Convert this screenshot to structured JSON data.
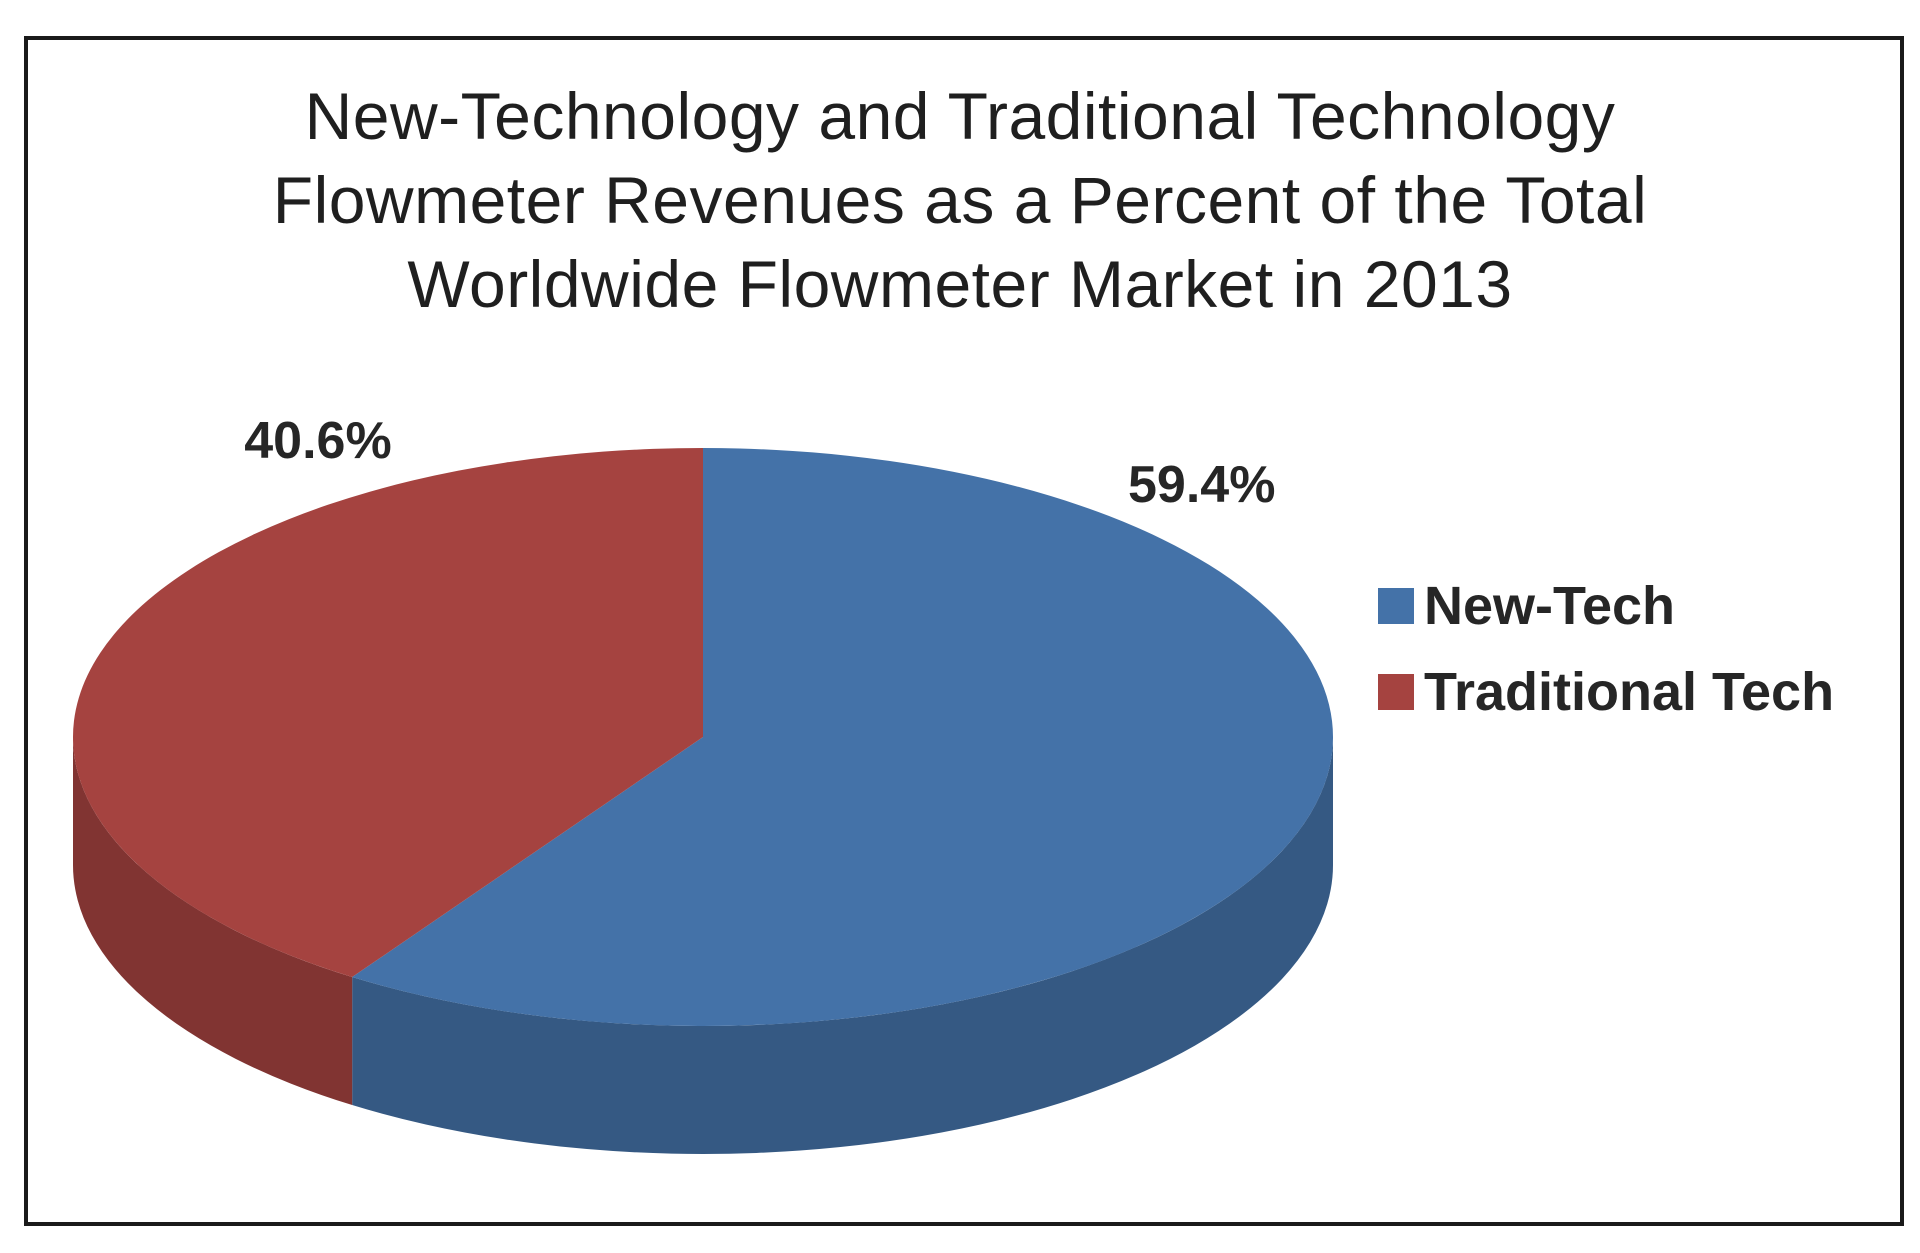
{
  "chart_data": {
    "type": "pie",
    "title_lines": [
      "New-Technology and Traditional Technology",
      "Flowmeter Revenues as a Percent of the Total",
      "Worldwide Flowmeter Market in 2013"
    ],
    "categories": [
      "New-Tech",
      "Traditional Tech"
    ],
    "values": [
      59.4,
      40.6
    ],
    "data_labels": [
      "59.4%",
      "40.6%"
    ],
    "unit": "%",
    "colors": [
      "#4472a8",
      "#a54340"
    ],
    "legend_position": "right",
    "style": "3d"
  }
}
